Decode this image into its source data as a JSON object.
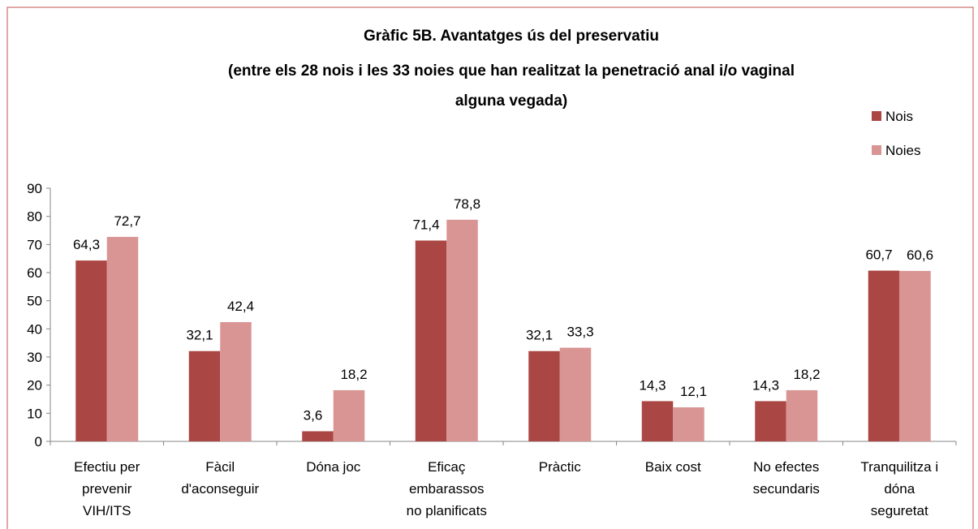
{
  "chart_data": {
    "type": "bar",
    "title": "Gràfic 5B. Avantatges ús del preservatiu",
    "subtitle": [
      "(entre els 28 nois i les 33 noies que han realitzat la penetració anal i/o vaginal",
      "alguna vegada)"
    ],
    "categories": [
      [
        "Efectiu per",
        "prevenir",
        "VIH/ITS"
      ],
      [
        "Fàcil",
        "d'aconseguir"
      ],
      [
        "Dóna joc"
      ],
      [
        "Eficaç",
        "embarassos",
        "no planificats"
      ],
      [
        "Pràctic"
      ],
      [
        "Baix cost"
      ],
      [
        "No efectes",
        "secundaris"
      ],
      [
        "Tranquilitza i",
        "dóna",
        "seguretat"
      ]
    ],
    "series": [
      {
        "name": "Nois",
        "color": "#aa4643",
        "values": [
          64.3,
          32.1,
          3.6,
          71.4,
          32.1,
          14.3,
          14.3,
          60.7
        ],
        "value_labels": [
          "64,3",
          "32,1",
          "3,6",
          "71,4",
          "32,1",
          "14,3",
          "14,3",
          "60,7"
        ]
      },
      {
        "name": "Noies",
        "color": "#d99594",
        "values": [
          72.7,
          42.4,
          18.2,
          78.8,
          33.3,
          12.1,
          18.2,
          60.6
        ],
        "value_labels": [
          "72,7",
          "42,4",
          "18,2",
          "78,8",
          "33,3",
          "12,1",
          "18,2",
          "60,6"
        ]
      }
    ],
    "ylim": [
      0,
      90
    ],
    "yticks": [
      0,
      10,
      20,
      30,
      40,
      50,
      60,
      70,
      80,
      90
    ],
    "legend": "top-right"
  }
}
